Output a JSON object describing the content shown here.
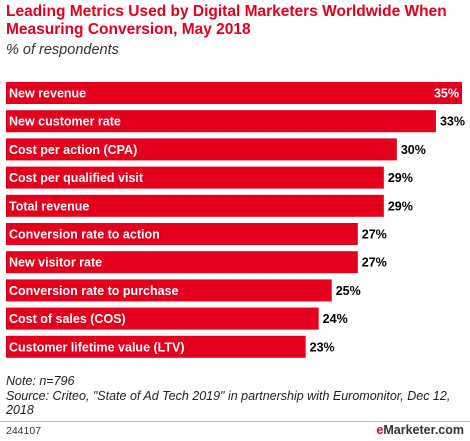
{
  "header": {
    "title": "Leading Metrics Used by Digital Marketers Worldwide When Measuring Conversion, May 2018",
    "subtitle": "% of respondents"
  },
  "chart_data": {
    "type": "bar",
    "orientation": "horizontal",
    "title": "Leading Metrics Used by Digital Marketers Worldwide When Measuring Conversion, May 2018",
    "subtitle": "% of respondents",
    "categories": [
      "New revenue",
      "New customer rate",
      "Cost per action (CPA)",
      "Cost per qualified visit",
      "Total revenue",
      "Conversion rate to action",
      "New visitor rate",
      "Conversion rate to purchase",
      "Cost of sales (COS)",
      "Customer lifetime value (LTV)"
    ],
    "values": [
      35,
      33,
      30,
      29,
      29,
      27,
      27,
      25,
      24,
      23
    ],
    "value_labels": [
      "35%",
      "33%",
      "30%",
      "29%",
      "29%",
      "27%",
      "27%",
      "25%",
      "24%",
      "23%"
    ],
    "xlim": [
      0,
      35
    ],
    "grid": false,
    "bar_color": "#e4001c"
  },
  "notes": {
    "note": "Note: n=796",
    "source": "Source: Criteo, \"State of Ad Tech 2019\" in partnership with Euromonitor, Dec 12, 2018"
  },
  "footer": {
    "chart_id": "244107",
    "brand_prefix": "e",
    "brand_name": "Marketer",
    "brand_suffix": ".com"
  }
}
